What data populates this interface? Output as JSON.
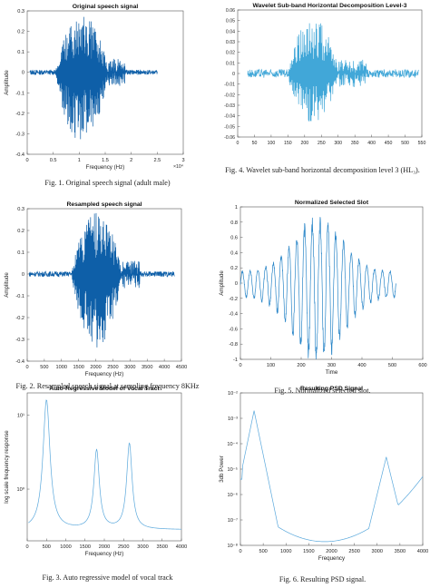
{
  "chart_data": [
    {
      "type": "line",
      "title": "Original speech signal",
      "xlabel": "Frequency (Hz)",
      "ylabel": "Amplitude",
      "xlim": [
        0,
        3
      ],
      "ylim": [
        -0.4,
        0.3
      ],
      "xticks": [
        "0",
        "0.5",
        "1",
        "1.5",
        "2",
        "2.5",
        "3"
      ],
      "yticks": [
        "-0.4",
        "-0.3",
        "-0.2",
        "-0.1",
        "0",
        "0.1",
        "0.2",
        "0.3"
      ],
      "x_exponent": "×10⁴",
      "signal": {
        "start": 0.05,
        "end": 2.5,
        "core_start": 0.55,
        "core_end": 1.55,
        "peak": 0.28,
        "trough": -0.34,
        "noise": 0.012
      },
      "color": "#0e5fa8",
      "caption": "Fig. 1.   Original speech signal (adult male)"
    },
    {
      "type": "line",
      "title": "Resampled speech signal",
      "xlabel": "Frequency (Hz)",
      "ylabel": "Amplitude",
      "xlim": [
        0,
        4500
      ],
      "ylim": [
        -0.4,
        0.3
      ],
      "xticks": [
        "0",
        "500",
        "1000",
        "1500",
        "2000",
        "2500",
        "3000",
        "3500",
        "4000",
        "4500"
      ],
      "yticks": [
        "-0.4",
        "-0.3",
        "-0.2",
        "-0.1",
        "0",
        "0.1",
        "0.2",
        "0.3"
      ],
      "signal": {
        "start": 50,
        "end": 4300,
        "core_start": 1300,
        "core_end": 2750,
        "peak": 0.28,
        "trough": -0.34,
        "noise": 0.012
      },
      "color": "#0e5fa8",
      "caption": "Fig. 2.   Resampled speech signal at sampling frequency 8KHz"
    },
    {
      "type": "line",
      "title": "Auto-Regressive Model of Vocal Tract",
      "xlabel": "Frequency (Hz)",
      "ylabel": "log scale frequency response",
      "xlim": [
        0,
        4000
      ],
      "ylim": [
        0.2,
        20
      ],
      "yscale": "log",
      "xticks": [
        "0",
        "500",
        "1000",
        "1500",
        "2000",
        "2500",
        "3000",
        "3500",
        "4000"
      ],
      "yticks": [
        "10⁰",
        "10¹"
      ],
      "ytick_values": [
        1,
        10
      ],
      "formants": [
        {
          "f": 500,
          "peak": 16
        },
        {
          "f": 1800,
          "peak": 3.3
        },
        {
          "f": 2650,
          "peak": 4.1
        }
      ],
      "color": "#5aa8dc",
      "caption": "Fig. 3.   Auto regressive model of vocal track"
    },
    {
      "type": "line",
      "title": "Wavelet Sub-band Horizontal Decomposition Level-3",
      "xlabel": "",
      "ylabel": "",
      "xlim": [
        0,
        550
      ],
      "ylim": [
        -0.06,
        0.06
      ],
      "xticks": [
        "0",
        "50",
        "100",
        "150",
        "200",
        "250",
        "300",
        "350",
        "400",
        "450",
        "500",
        "550"
      ],
      "yticks": [
        "-0.06",
        "-0.05",
        "-0.04",
        "-0.03",
        "-0.02",
        "-0.01",
        "0",
        "0.01",
        "0.02",
        "0.03",
        "0.04",
        "0.05",
        "0.06"
      ],
      "signal": {
        "start": 30,
        "end": 540,
        "core_start": 150,
        "core_end": 300,
        "peak": 0.052,
        "trough": -0.047,
        "noise": 0.004
      },
      "color": "#41a7d8",
      "caption": "Fig. 4.   Wavelet sub-band horizontal decomposition level 3 (HL₃)."
    },
    {
      "type": "line",
      "title": "Normalized Selected Slot",
      "xlabel": "Time",
      "ylabel": "Amplitude",
      "xlim": [
        0,
        600
      ],
      "ylim": [
        -1,
        1
      ],
      "xticks": [
        "0",
        "100",
        "200",
        "300",
        "400",
        "500",
        "600"
      ],
      "yticks": [
        "-1",
        "-0.8",
        "-0.6",
        "-0.4",
        "-0.2",
        "0",
        "0.2",
        "0.4",
        "0.6",
        "0.8",
        "1"
      ],
      "signal": {
        "start": 0,
        "end": 512,
        "peak": 0.8,
        "trough": -0.97,
        "cycles": 20
      },
      "color": "#2a86c8",
      "caption": "Fig. 5.   Normalized selected slot."
    },
    {
      "type": "line",
      "title": "Resulting PSD Signal",
      "xlabel": "Frequency",
      "ylabel": "3db Power",
      "xlim": [
        0,
        4000
      ],
      "ylim": [
        1e-08,
        0.01
      ],
      "yscale": "log",
      "xticks": [
        "0",
        "500",
        "1000",
        "1500",
        "2000",
        "2500",
        "3000",
        "3500",
        "4000"
      ],
      "yticks": [
        "10⁻⁸",
        "10⁻⁷",
        "10⁻⁶",
        "10⁻⁵",
        "10⁻⁴",
        "10⁻³",
        "10⁻²"
      ],
      "ytick_values": [
        1e-08,
        1e-07,
        1e-06,
        1e-05,
        0.0001,
        0.001,
        0.01
      ],
      "psd": {
        "peak1_f": 300,
        "peak1": 0.002,
        "shoulder_f": 650,
        "min_f": 1850,
        "min": 1.4e-08,
        "peak2_f": 3200,
        "peak2": 3e-05,
        "end": 1e-06
      },
      "color": "#5aa8dc",
      "caption": "Fig. 6.   Resulting PSD signal."
    }
  ]
}
